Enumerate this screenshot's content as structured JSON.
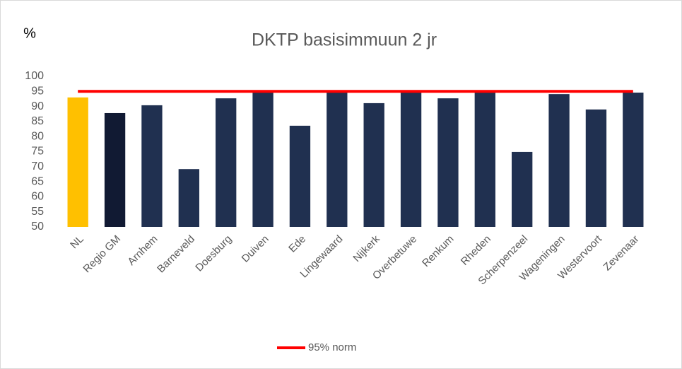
{
  "chart_data": {
    "type": "bar",
    "title": "DKTP basisimmuun 2 jr",
    "y_label": "%",
    "categories": [
      "NL",
      "Regio GM",
      "Arnhem",
      "Barneveld",
      "Doesburg",
      "Duiven",
      "Ede",
      "Lingewaard",
      "Nijkerk",
      "Overbetuwe",
      "Renkum",
      "Rheden",
      "Scherpenzeel",
      "Wageningen",
      "Westervoort",
      "Zevenaar"
    ],
    "values": [
      93.0,
      87.8,
      90.4,
      69.2,
      92.7,
      94.9,
      83.6,
      95.0,
      91.1,
      94.6,
      92.7,
      95.1,
      74.9,
      94.1,
      89.0,
      94.6
    ],
    "colors": [
      "#ffc000",
      "#111a33",
      "#203050",
      "#203050",
      "#203050",
      "#203050",
      "#203050",
      "#203050",
      "#203050",
      "#203050",
      "#203050",
      "#203050",
      "#203050",
      "#203050",
      "#203050",
      "#203050"
    ],
    "lines": [
      {
        "name": "95% norm",
        "color": "#ff0000",
        "values": [
          95,
          95,
          95,
          95,
          95,
          95,
          95,
          95,
          95,
          95,
          95,
          95,
          95,
          95,
          95,
          95
        ]
      }
    ],
    "ylim": [
      50,
      100
    ],
    "yticks": [
      50,
      55,
      60,
      65,
      70,
      75,
      80,
      85,
      90,
      95,
      100
    ],
    "grid": false,
    "legend": "bottom"
  }
}
